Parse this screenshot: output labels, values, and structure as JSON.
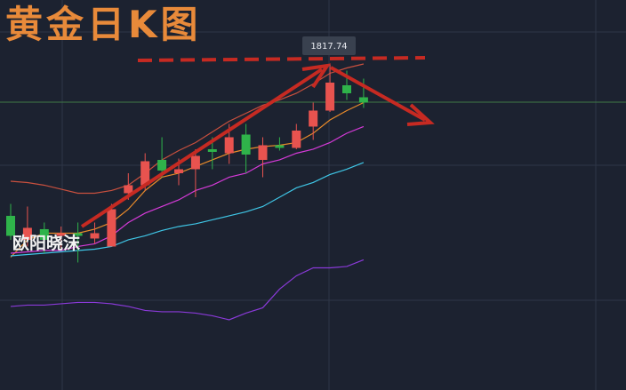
{
  "chart_data": {
    "type": "candlestick",
    "title": "黄金日K图",
    "watermark": "欧阳晓沫",
    "ylim": [
      1573.3,
      1866
    ],
    "up_color": "#e8534f",
    "down_color": "#2fb34a",
    "open": [
      1704,
      1686,
      1694,
      1689,
      1691,
      1687,
      1681,
      1721,
      1727,
      1746,
      1736,
      1739,
      1754,
      1751,
      1765,
      1746,
      1757,
      1755,
      1771,
      1783,
      1802,
      1793
    ],
    "close": [
      1689,
      1695,
      1686,
      1691,
      1689,
      1691,
      1709,
      1727,
      1745,
      1738,
      1739,
      1749,
      1752,
      1763,
      1750,
      1757,
      1755,
      1768,
      1783,
      1804,
      1796,
      1789
    ],
    "high": [
      1713,
      1711,
      1699,
      1696,
      1699,
      1699,
      1713,
      1736,
      1751,
      1763,
      1747,
      1754,
      1763,
      1773,
      1773,
      1763,
      1763,
      1773,
      1789,
      1817.74,
      1813,
      1807
    ],
    "low": [
      1686,
      1681,
      1676,
      1679,
      1669,
      1683,
      1681,
      1716,
      1723,
      1733,
      1727,
      1718,
      1739,
      1743,
      1736,
      1733,
      1753,
      1754,
      1761,
      1782,
      1791,
      1785
    ],
    "series": [
      {
        "color": "#c9503e",
        "values": [
          1730,
          1729,
          1727,
          1724,
          1721,
          1721,
          1723,
          1727,
          1736,
          1746,
          1753,
          1759,
          1767,
          1775,
          1781,
          1787,
          1791,
          1796,
          1803,
          1811,
          1815,
          1818
        ]
      },
      {
        "color": "#e88a2a",
        "values": [
          1673,
          1686,
          1691,
          1691,
          1691,
          1694,
          1699,
          1709,
          1723,
          1733,
          1736,
          1741,
          1746,
          1751,
          1754,
          1756,
          1757,
          1759,
          1766,
          1776,
          1783,
          1789
        ]
      },
      {
        "color": "#d53ad8",
        "values": [
          1676,
          1677,
          1678,
          1678,
          1681,
          1683,
          1689,
          1699,
          1706,
          1711,
          1716,
          1723,
          1727,
          1733,
          1736,
          1743,
          1746,
          1751,
          1754,
          1759,
          1766,
          1771
        ]
      },
      {
        "color": "#3fc6e6",
        "values": [
          1674,
          1675,
          1676,
          1677,
          1678,
          1679,
          1681,
          1686,
          1689,
          1693,
          1696,
          1698,
          1701,
          1704,
          1707,
          1711,
          1718,
          1725,
          1729,
          1735,
          1739,
          1744
        ]
      },
      {
        "color": "#8a3ad8",
        "values": [
          1636,
          1637,
          1637,
          1638,
          1639,
          1639,
          1638,
          1636,
          1633,
          1632,
          1632,
          1631,
          1629,
          1626,
          1631,
          1635,
          1649,
          1659,
          1665,
          1665,
          1666,
          1671
        ]
      }
    ]
  }
}
